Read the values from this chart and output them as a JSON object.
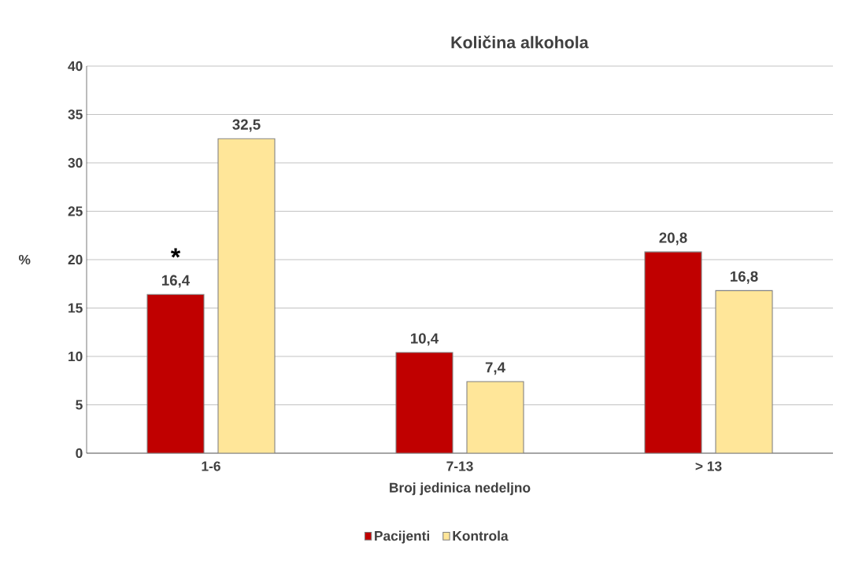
{
  "chart_data": {
    "type": "bar",
    "title": "Količina alkohola",
    "xlabel": "Broj jedinica nedeljno",
    "ylabel": "%",
    "categories": [
      "1-6",
      "7-13",
      "> 13"
    ],
    "series": [
      {
        "name": "Pacijenti",
        "color": "#c00000",
        "values": [
          16.4,
          10.4,
          20.8
        ],
        "value_labels": [
          "16,4",
          "10,4",
          "20,8"
        ]
      },
      {
        "name": "Kontrola",
        "color": "#ffe699",
        "values": [
          32.5,
          7.4,
          16.8
        ],
        "value_labels": [
          "32,5",
          "7,4",
          "16,8"
        ]
      }
    ],
    "ylim": [
      0,
      40
    ],
    "yticks": [
      0,
      5,
      10,
      15,
      20,
      25,
      30,
      35,
      40
    ],
    "grid": "y",
    "legend": "bottom",
    "annotations": [
      "*"
    ]
  }
}
